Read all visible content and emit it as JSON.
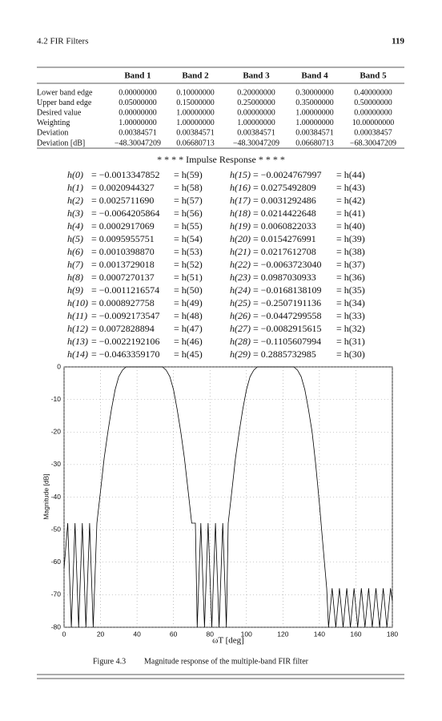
{
  "header": {
    "section": "4.2 FIR Filters",
    "page": "119"
  },
  "table": {
    "columns": [
      "Band 1",
      "Band 2",
      "Band 3",
      "Band 4",
      "Band 5"
    ],
    "rows": [
      {
        "label": "Lower band edge",
        "cells": [
          "0.00000000",
          "0.10000000",
          "0.20000000",
          "0.30000000",
          "0.40000000"
        ]
      },
      {
        "label": "Upper band edge",
        "cells": [
          "0.05000000",
          "0.15000000",
          "0.25000000",
          "0.35000000",
          "0.50000000"
        ]
      },
      {
        "label": "Desired value",
        "cells": [
          "0.00000000",
          "1.00000000",
          "0.00000000",
          "1.00000000",
          "0.00000000"
        ]
      },
      {
        "label": "Weighting",
        "cells": [
          "1.00000000",
          "1.00000000",
          "1.00000000",
          "1.00000000",
          "10.00000000"
        ]
      },
      {
        "label": "Deviation",
        "cells": [
          "0.00384571",
          "0.00384571",
          "0.00384571",
          "0.00384571",
          "0.00038457"
        ]
      },
      {
        "label": "Deviation [dB]",
        "cells": [
          "−48.30047209",
          "0.06680713",
          "−48.30047209",
          "0.06680713",
          "−68.30047209"
        ]
      }
    ]
  },
  "impulse": {
    "title": "* * * * Impulse Response * * * *",
    "entries": [
      {
        "h": "h(0)",
        "value": "= −0.0013347852",
        "mirror": "= h(59)"
      },
      {
        "h": "h(1)",
        "value": "= 0.0020944327",
        "mirror": "= h(58)"
      },
      {
        "h": "h(2)",
        "value": "= 0.0025711690",
        "mirror": "= h(57)"
      },
      {
        "h": "h(3)",
        "value": "= −0.0064205864",
        "mirror": "= h(56)"
      },
      {
        "h": "h(4)",
        "value": "= 0.0002917069",
        "mirror": "= h(55)"
      },
      {
        "h": "h(5)",
        "value": "= 0.0095955751",
        "mirror": "= h(54)"
      },
      {
        "h": "h(6)",
        "value": "= 0.0010398870",
        "mirror": "= h(53)"
      },
      {
        "h": "h(7)",
        "value": "= 0.0013729018",
        "mirror": "= h(52)"
      },
      {
        "h": "h(8)",
        "value": "= 0.0007270137",
        "mirror": "= h(51)"
      },
      {
        "h": "h(9)",
        "value": "= −0.0011216574",
        "mirror": "= h(50)"
      },
      {
        "h": "h(10)",
        "value": "= 0.0008927758",
        "mirror": "= h(49)"
      },
      {
        "h": "h(11)",
        "value": "= −0.0092173547",
        "mirror": "= h(48)"
      },
      {
        "h": "h(12)",
        "value": "= 0.0072828894",
        "mirror": "= h(47)"
      },
      {
        "h": "h(13)",
        "value": "= −0.0022192106",
        "mirror": "= h(46)"
      },
      {
        "h": "h(14)",
        "value": "= −0.0463359170",
        "mirror": "= h(45)"
      },
      {
        "h": "h(15)",
        "value": "= −0.0024767997",
        "mirror": "= h(44)"
      },
      {
        "h": "h(16)",
        "value": "= 0.0275492809",
        "mirror": "= h(43)"
      },
      {
        "h": "h(17)",
        "value": "= 0.0031292486",
        "mirror": "= h(42)"
      },
      {
        "h": "h(18)",
        "value": "= 0.0214422648",
        "mirror": "= h(41)"
      },
      {
        "h": "h(19)",
        "value": "= 0.0060822033",
        "mirror": "= h(40)"
      },
      {
        "h": "h(20)",
        "value": "= 0.0154276991",
        "mirror": "= h(39)"
      },
      {
        "h": "h(21)",
        "value": "= 0.0217612708",
        "mirror": "= h(38)"
      },
      {
        "h": "h(22)",
        "value": "= −0.0063723040",
        "mirror": "= h(37)"
      },
      {
        "h": "h(23)",
        "value": "= 0.0987030933",
        "mirror": "= h(36)"
      },
      {
        "h": "h(24)",
        "value": "= −0.0168138109",
        "mirror": "= h(35)"
      },
      {
        "h": "h(25)",
        "value": "= −0.2507191136",
        "mirror": "= h(34)"
      },
      {
        "h": "h(26)",
        "value": "= −0.0447299558",
        "mirror": "= h(33)"
      },
      {
        "h": "h(27)",
        "value": "= −0.0082915615",
        "mirror": "= h(32)"
      },
      {
        "h": "h(28)",
        "value": "= −0.1105607994",
        "mirror": "= h(31)"
      },
      {
        "h": "h(29)",
        "value": "= 0.2885732985",
        "mirror": "= h(30)"
      }
    ]
  },
  "chart_data": {
    "type": "line",
    "xlabel": "ωT  [deg]",
    "ylabel": "Magnitude [dB]",
    "color": "#000000",
    "grid": true,
    "xlim": [
      0,
      180
    ],
    "xticks": [
      0,
      20,
      40,
      60,
      80,
      100,
      120,
      140,
      160,
      180
    ],
    "ylim": [
      -80,
      0
    ],
    "yticks": [
      -80,
      -70,
      -60,
      -50,
      -40,
      -30,
      -20,
      -10,
      0
    ],
    "x": [
      0,
      2,
      4,
      6,
      8,
      10,
      12,
      14,
      16,
      18,
      20,
      22,
      24,
      26,
      28,
      30,
      32,
      34,
      36,
      45,
      54,
      56,
      58,
      60,
      62,
      64,
      66,
      68,
      70,
      72,
      73,
      75,
      77,
      79,
      81,
      83,
      85,
      87,
      89,
      90,
      92,
      94,
      96,
      98,
      100,
      102,
      104,
      106,
      108,
      117,
      126,
      128,
      130,
      132,
      134,
      136,
      138,
      140,
      142,
      144,
      145,
      147,
      149,
      151,
      153,
      155,
      157,
      159,
      161,
      163,
      165,
      167,
      169,
      171,
      173,
      175,
      177,
      179,
      180
    ],
    "y": [
      -62,
      -48,
      -80,
      -48,
      -80,
      -48,
      -80,
      -48,
      -80,
      -48,
      -38,
      -28,
      -20,
      -13,
      -7,
      -3,
      -1,
      0,
      0,
      0,
      0,
      -1,
      -3,
      -7,
      -13,
      -20,
      -28,
      -38,
      -48,
      -48,
      -80,
      -48,
      -80,
      -48,
      -80,
      -48,
      -80,
      -48,
      -80,
      -48,
      -38,
      -28,
      -20,
      -13,
      -7,
      -3,
      -1,
      0,
      0,
      0,
      0,
      -1,
      -3,
      -7,
      -13,
      -20,
      -30,
      -42,
      -55,
      -68,
      -80,
      -68,
      -80,
      -68,
      -80,
      -68,
      -80,
      -68,
      -80,
      -68,
      -80,
      -68,
      -80,
      -68,
      -80,
      -68,
      -80,
      -68,
      -72
    ]
  },
  "caption": {
    "label": "Figure 4.3",
    "text": "Magnitude response of the multiple-band FIR filter"
  }
}
